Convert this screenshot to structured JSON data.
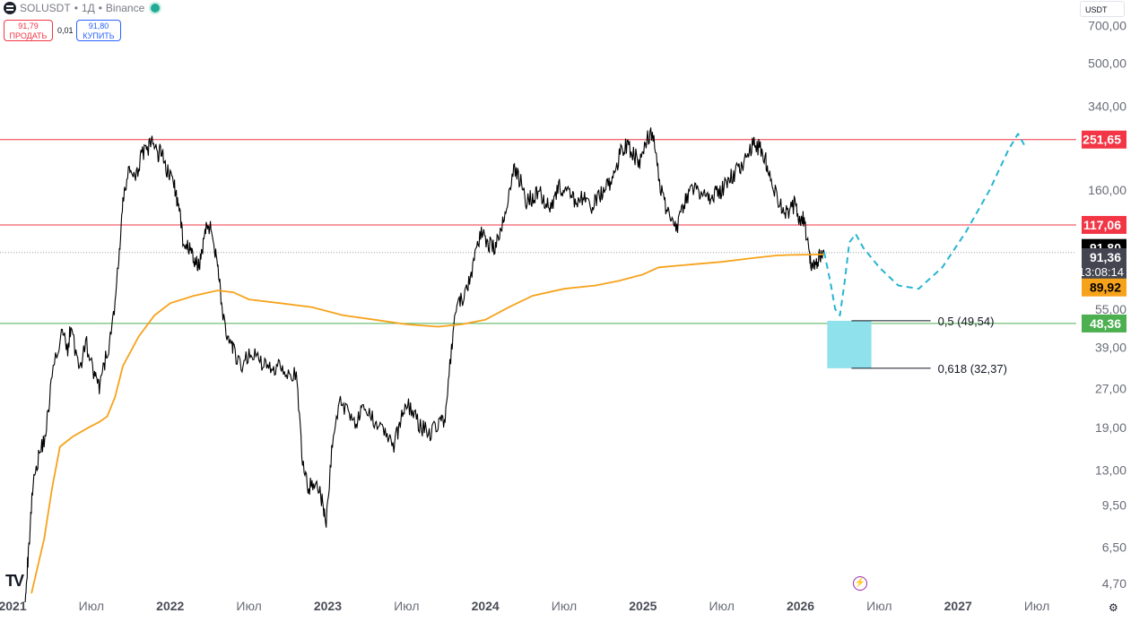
{
  "header": {
    "symbol": "SOLUSDT",
    "timeframe": "1Д",
    "exchange": "Binance",
    "sell_price": "91,79",
    "sell_label": "ПРОДАТЬ",
    "spread": "0,01",
    "buy_price": "91,80",
    "buy_label": "КУПИТЬ",
    "currency": "USDT"
  },
  "colors": {
    "resistance": "#f23645",
    "support": "#4caf50",
    "ma": "#f7a21b",
    "projection": "#26b5d1",
    "zone": "#8fe1ec",
    "price": "#000000"
  },
  "icons": {
    "logo": "tradingview-logo",
    "bolt": "lightning-icon",
    "settings": "settings-icon"
  },
  "chart_data": {
    "type": "line",
    "scale": "log",
    "y_range": [
      4.3,
      880
    ],
    "y_ticks": [
      {
        "value": 700,
        "label": "700,00"
      },
      {
        "value": 500,
        "label": "500,00"
      },
      {
        "value": 340,
        "label": "340,00"
      },
      {
        "value": 160,
        "label": "160,00"
      },
      {
        "value": 55,
        "label": "55,00"
      },
      {
        "value": 39,
        "label": "39,00"
      },
      {
        "value": 27,
        "label": "27,00"
      },
      {
        "value": 19,
        "label": "19,00"
      },
      {
        "value": 13,
        "label": "13,00"
      },
      {
        "value": 9.5,
        "label": "9,50"
      },
      {
        "value": 6.5,
        "label": "6,50"
      },
      {
        "value": 4.7,
        "label": "4,70"
      }
    ],
    "x_range": [
      2020.92,
      2027.75
    ],
    "x_ticks": [
      {
        "t": 2021.0,
        "label": "2021",
        "bold": true
      },
      {
        "t": 2021.5,
        "label": "Июл",
        "bold": false
      },
      {
        "t": 2022.0,
        "label": "2022",
        "bold": true
      },
      {
        "t": 2022.5,
        "label": "Июл",
        "bold": false
      },
      {
        "t": 2023.0,
        "label": "2023",
        "bold": true
      },
      {
        "t": 2023.5,
        "label": "Июл",
        "bold": false
      },
      {
        "t": 2024.0,
        "label": "2024",
        "bold": true
      },
      {
        "t": 2024.5,
        "label": "Июл",
        "bold": false
      },
      {
        "t": 2025.0,
        "label": "2025",
        "bold": true
      },
      {
        "t": 2025.5,
        "label": "Июл",
        "bold": false
      },
      {
        "t": 2026.0,
        "label": "2026",
        "bold": true
      },
      {
        "t": 2026.5,
        "label": "Июл",
        "bold": false
      },
      {
        "t": 2027.0,
        "label": "2027",
        "bold": true
      },
      {
        "t": 2027.5,
        "label": "Июл",
        "bold": false
      }
    ],
    "price": [
      [
        2021.08,
        4.3
      ],
      [
        2021.1,
        6
      ],
      [
        2021.13,
        12
      ],
      [
        2021.17,
        15
      ],
      [
        2021.21,
        18
      ],
      [
        2021.25,
        30
      ],
      [
        2021.31,
        45
      ],
      [
        2021.35,
        38
      ],
      [
        2021.37,
        48
      ],
      [
        2021.42,
        32
      ],
      [
        2021.47,
        40
      ],
      [
        2021.52,
        30
      ],
      [
        2021.55,
        27
      ],
      [
        2021.59,
        35
      ],
      [
        2021.63,
        45
      ],
      [
        2021.67,
        80
      ],
      [
        2021.7,
        140
      ],
      [
        2021.74,
        200
      ],
      [
        2021.78,
        170
      ],
      [
        2021.82,
        230
      ],
      [
        2021.85,
        220
      ],
      [
        2021.88,
        250
      ],
      [
        2021.92,
        220
      ],
      [
        2021.95,
        230
      ],
      [
        2021.98,
        190
      ],
      [
        2022.02,
        175
      ],
      [
        2022.05,
        140
      ],
      [
        2022.08,
        105
      ],
      [
        2022.12,
        95
      ],
      [
        2022.15,
        85
      ],
      [
        2022.18,
        80
      ],
      [
        2022.21,
        100
      ],
      [
        2022.24,
        120
      ],
      [
        2022.27,
        105
      ],
      [
        2022.3,
        85
      ],
      [
        2022.33,
        55
      ],
      [
        2022.37,
        40
      ],
      [
        2022.4,
        38
      ],
      [
        2022.45,
        32
      ],
      [
        2022.5,
        37
      ],
      [
        2022.55,
        36
      ],
      [
        2022.6,
        33
      ],
      [
        2022.65,
        32
      ],
      [
        2022.7,
        34
      ],
      [
        2022.75,
        31
      ],
      [
        2022.8,
        30
      ],
      [
        2022.84,
        14
      ],
      [
        2022.88,
        11
      ],
      [
        2022.92,
        12
      ],
      [
        2022.96,
        10
      ],
      [
        2022.99,
        8
      ],
      [
        2023.03,
        17
      ],
      [
        2023.08,
        24
      ],
      [
        2023.13,
        22
      ],
      [
        2023.18,
        20
      ],
      [
        2023.22,
        22
      ],
      [
        2023.27,
        21
      ],
      [
        2023.32,
        20
      ],
      [
        2023.37,
        18
      ],
      [
        2023.42,
        16
      ],
      [
        2023.46,
        20
      ],
      [
        2023.5,
        24
      ],
      [
        2023.55,
        21
      ],
      [
        2023.6,
        19
      ],
      [
        2023.65,
        18
      ],
      [
        2023.7,
        20
      ],
      [
        2023.74,
        20
      ],
      [
        2023.78,
        35
      ],
      [
        2023.82,
        58
      ],
      [
        2023.86,
        60
      ],
      [
        2023.9,
        70
      ],
      [
        2023.94,
        95
      ],
      [
        2023.98,
        110
      ],
      [
        2024.02,
        100
      ],
      [
        2024.06,
        95
      ],
      [
        2024.1,
        110
      ],
      [
        2024.14,
        145
      ],
      [
        2024.18,
        195
      ],
      [
        2024.22,
        175
      ],
      [
        2024.26,
        145
      ],
      [
        2024.3,
        150
      ],
      [
        2024.34,
        160
      ],
      [
        2024.38,
        145
      ],
      [
        2024.42,
        140
      ],
      [
        2024.46,
        165
      ],
      [
        2024.5,
        160
      ],
      [
        2024.54,
        150
      ],
      [
        2024.58,
        145
      ],
      [
        2024.62,
        150
      ],
      [
        2024.66,
        135
      ],
      [
        2024.7,
        145
      ],
      [
        2024.74,
        155
      ],
      [
        2024.78,
        165
      ],
      [
        2024.82,
        180
      ],
      [
        2024.86,
        230
      ],
      [
        2024.9,
        240
      ],
      [
        2024.94,
        220
      ],
      [
        2024.98,
        205
      ],
      [
        2025.02,
        250
      ],
      [
        2025.06,
        270
      ],
      [
        2025.1,
        180
      ],
      [
        2025.14,
        140
      ],
      [
        2025.18,
        130
      ],
      [
        2025.22,
        115
      ],
      [
        2025.26,
        140
      ],
      [
        2025.3,
        155
      ],
      [
        2025.34,
        165
      ],
      [
        2025.38,
        150
      ],
      [
        2025.42,
        150
      ],
      [
        2025.46,
        155
      ],
      [
        2025.5,
        160
      ],
      [
        2025.54,
        175
      ],
      [
        2025.58,
        185
      ],
      [
        2025.62,
        200
      ],
      [
        2025.66,
        215
      ],
      [
        2025.7,
        240
      ],
      [
        2025.74,
        235
      ],
      [
        2025.78,
        210
      ],
      [
        2025.8,
        185
      ],
      [
        2025.84,
        155
      ],
      [
        2025.88,
        135
      ],
      [
        2025.92,
        130
      ],
      [
        2025.96,
        140
      ],
      [
        2025.99,
        125
      ],
      [
        2026.02,
        125
      ],
      [
        2026.05,
        95
      ],
      [
        2026.07,
        80
      ],
      [
        2026.09,
        82
      ],
      [
        2026.12,
        88
      ],
      [
        2026.15,
        91.8
      ]
    ],
    "ma": [
      [
        2021.12,
        4.3
      ],
      [
        2021.2,
        7
      ],
      [
        2021.25,
        11
      ],
      [
        2021.3,
        16
      ],
      [
        2021.38,
        17.5
      ],
      [
        2021.48,
        19
      ],
      [
        2021.55,
        20
      ],
      [
        2021.6,
        21
      ],
      [
        2021.65,
        25
      ],
      [
        2021.7,
        33
      ],
      [
        2021.8,
        43
      ],
      [
        2021.9,
        52
      ],
      [
        2022.0,
        58
      ],
      [
        2022.15,
        62
      ],
      [
        2022.3,
        65
      ],
      [
        2022.4,
        64
      ],
      [
        2022.5,
        60
      ],
      [
        2022.7,
        58
      ],
      [
        2022.9,
        56
      ],
      [
        2023.1,
        52
      ],
      [
        2023.3,
        50
      ],
      [
        2023.5,
        48
      ],
      [
        2023.7,
        47
      ],
      [
        2023.85,
        48
      ],
      [
        2024.0,
        50
      ],
      [
        2024.15,
        56
      ],
      [
        2024.3,
        62
      ],
      [
        2024.5,
        66
      ],
      [
        2024.7,
        68
      ],
      [
        2024.85,
        71
      ],
      [
        2025.0,
        75
      ],
      [
        2025.1,
        80
      ],
      [
        2025.3,
        82
      ],
      [
        2025.5,
        84
      ],
      [
        2025.7,
        87
      ],
      [
        2025.85,
        89
      ],
      [
        2025.95,
        89.5
      ],
      [
        2026.05,
        89.7
      ],
      [
        2026.15,
        89.92
      ]
    ],
    "projection": [
      [
        2026.15,
        91.8
      ],
      [
        2026.19,
        70
      ],
      [
        2026.22,
        55
      ],
      [
        2026.25,
        52
      ],
      [
        2026.28,
        70
      ],
      [
        2026.31,
        100
      ],
      [
        2026.35,
        108
      ],
      [
        2026.4,
        95
      ],
      [
        2026.5,
        80
      ],
      [
        2026.62,
        68
      ],
      [
        2026.75,
        66
      ],
      [
        2026.9,
        80
      ],
      [
        2027.05,
        110
      ],
      [
        2027.2,
        160
      ],
      [
        2027.32,
        230
      ],
      [
        2027.38,
        265
      ],
      [
        2027.42,
        240
      ]
    ],
    "zone": {
      "from": 32.37,
      "to": 49.54,
      "t_start": 2026.17,
      "t_end": 2026.45
    },
    "fib_levels": [
      {
        "value": 49.54,
        "label": "0,5 (49,54)"
      },
      {
        "value": 32.37,
        "label": "0,618 (32,37)"
      }
    ],
    "h_lines": [
      {
        "value": 251.65,
        "kind": "resistance"
      },
      {
        "value": 117.06,
        "kind": "resistance"
      },
      {
        "value": 48.36,
        "kind": "support"
      }
    ],
    "last_price_line": 91.36,
    "price_labels": [
      {
        "y": 251.65,
        "text": "251,65",
        "bg": "#f23645",
        "fg": "#ffffff"
      },
      {
        "y": 117.06,
        "text": "117,06",
        "bg": "#f23645",
        "fg": "#ffffff"
      },
      {
        "y": 95.2,
        "text": "91,80",
        "bg": "#000000",
        "fg": "#ffffff"
      },
      {
        "y": 83.5,
        "text": "91,36",
        "text2": "13:08:14",
        "bg": "#434651",
        "fg": "#ffffff"
      },
      {
        "y": 66.8,
        "text": "89,92",
        "bg": "#f7a21b",
        "fg": "#000000"
      },
      {
        "y": 48.36,
        "text": "48,36",
        "bg": "#4caf50",
        "fg": "#ffffff"
      }
    ]
  }
}
